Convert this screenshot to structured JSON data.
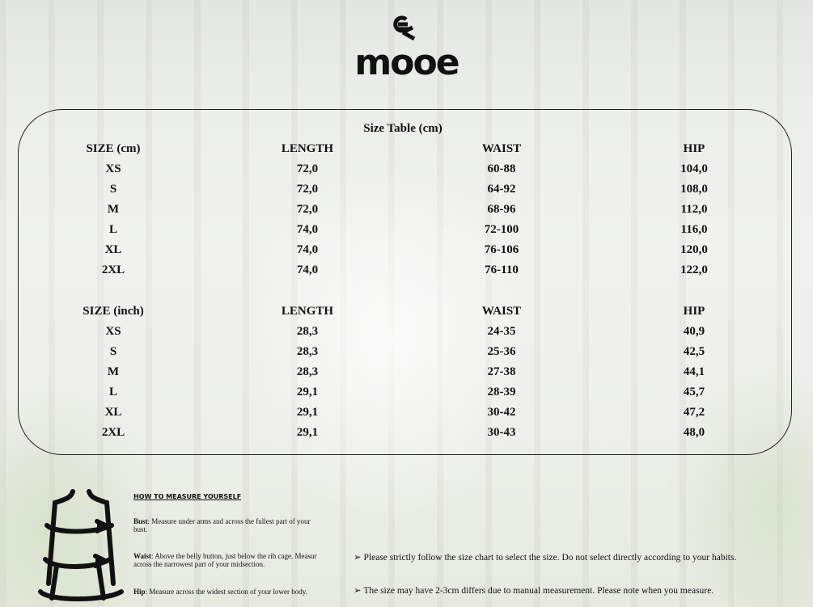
{
  "brand": {
    "name": "mooe"
  },
  "table_title": "Size Table (cm)",
  "cm": {
    "headers": [
      "SIZE (cm)",
      "LENGTH",
      "WAIST",
      "HIP"
    ],
    "rows": [
      [
        "XS",
        "72,0",
        "60-88",
        "104,0"
      ],
      [
        "S",
        "72,0",
        "64-92",
        "108,0"
      ],
      [
        "M",
        "72,0",
        "68-96",
        "112,0"
      ],
      [
        "L",
        "74,0",
        "72-100",
        "116,0"
      ],
      [
        "XL",
        "74,0",
        "76-106",
        "120,0"
      ],
      [
        "2XL",
        "74,0",
        "76-110",
        "122,0"
      ]
    ]
  },
  "inch": {
    "headers": [
      "SIZE (inch)",
      "LENGTH",
      "WAIST",
      "HIP"
    ],
    "rows": [
      [
        "XS",
        "28,3",
        "24-35",
        "40,9"
      ],
      [
        "S",
        "28,3",
        "25-36",
        "42,5"
      ],
      [
        "M",
        "28,3",
        "27-38",
        "44,1"
      ],
      [
        "L",
        "29,1",
        "28-39",
        "45,7"
      ],
      [
        "XL",
        "29,1",
        "30-42",
        "47,2"
      ],
      [
        "2XL",
        "29,1",
        "30-43",
        "48,0"
      ]
    ]
  },
  "measure": {
    "heading": "HOW TO MEASURE YOURSELF",
    "items": [
      {
        "label": "Bust",
        "text": ": Measure under arms and across the fullest part of your bust."
      },
      {
        "label": "Waist",
        "text": ": Above the belly button, just below the rib cage. Measur across the narrowest part of your midsection."
      },
      {
        "label": "Hip",
        "text": ": Measure across the widest section of your lower body."
      }
    ]
  },
  "notes": [
    "Please strictly follow the size chart to select the size. Do not select directly according to your habits.",
    "The size may have 2-3cm differs due to manual measurement. Please note when you measure."
  ]
}
